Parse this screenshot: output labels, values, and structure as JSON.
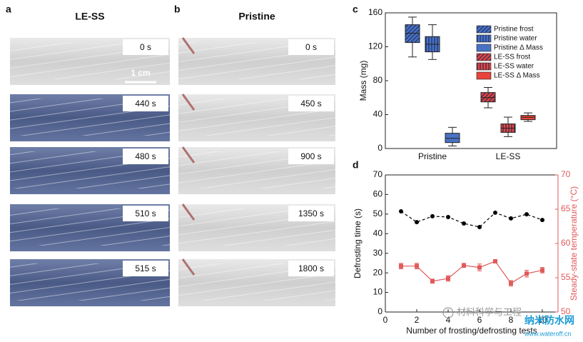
{
  "panels": [
    {
      "letter": "a",
      "title": "LE-SS",
      "times": [
        "0 s",
        "440 s",
        "480 s",
        "510 s",
        "515 s"
      ],
      "scale_bar": "1 cm"
    },
    {
      "letter": "b",
      "title": "Pristine",
      "times": [
        "0 s",
        "450 s",
        "900 s",
        "1350 s",
        "1800 s"
      ]
    }
  ],
  "chart_data": [
    {
      "type": "box",
      "letter": "c",
      "ylabel": "Mass (mg)",
      "ylim": [
        0,
        160
      ],
      "yticks": [
        0,
        40,
        80,
        120,
        160
      ],
      "categories": [
        "Pristine",
        "LE-SS"
      ],
      "series": [
        {
          "name": "Pristine frost",
          "color": "#4a72c4",
          "pattern": "hatch",
          "values": [
            [
              108,
              125,
              136,
              146,
              155
            ],
            null
          ]
        },
        {
          "name": "Pristine water",
          "color": "#4a72c4",
          "pattern": "vertical",
          "values": [
            [
              105,
              114,
              123,
              132,
              146
            ],
            null
          ]
        },
        {
          "name": "Pristine Δ Mass",
          "color": "#4a72c4",
          "pattern": "solid",
          "values": [
            [
              3,
              7,
              12,
              18,
              25
            ],
            null
          ]
        },
        {
          "name": "LE-SS frost",
          "color": "#e8433a",
          "pattern": "hatch",
          "values": [
            null,
            [
              48,
              55,
              60,
              66,
              72
            ]
          ]
        },
        {
          "name": "LE-SS water",
          "color": "#e8433a",
          "pattern": "vertical",
          "values": [
            null,
            [
              14,
              19,
              24,
              29,
              37
            ]
          ]
        },
        {
          "name": "LE-SS Δ Mass",
          "color": "#e8433a",
          "pattern": "solid",
          "values": [
            null,
            [
              32,
              34,
              37,
              39,
              42
            ]
          ]
        }
      ]
    },
    {
      "type": "line",
      "letter": "d",
      "xlabel": "Number of frosting/defrosting tests",
      "ylabel": "Defrosting time (s)",
      "y2label": "Steady-state temperature (°C)",
      "x": [
        1,
        2,
        3,
        4,
        5,
        6,
        7,
        8,
        9,
        10
      ],
      "xlim": [
        0,
        11
      ],
      "xticks": [
        0,
        2,
        4,
        6,
        8,
        10
      ],
      "ylim": [
        0,
        70
      ],
      "yticks": [
        0,
        10,
        20,
        30,
        40,
        50,
        60,
        70
      ],
      "y2lim": [
        50,
        70
      ],
      "y2ticks": [
        50,
        55,
        60,
        65,
        70
      ],
      "series": [
        {
          "color": "#000000",
          "dash": true,
          "values": [
            51.4,
            45.9,
            48.9,
            48.5,
            45.2,
            43.4,
            50.7,
            47.8,
            49.9,
            47.0
          ]
        },
        {
          "axis": "y2",
          "color": "#e05a5a",
          "values": [
            56.7,
            56.7,
            54.5,
            54.9,
            56.8,
            56.5,
            57.4,
            54.2,
            55.6,
            56.1
          ],
          "errors": [
            0.4,
            0.4,
            0.3,
            0.4,
            0.3,
            0.5,
            0.2,
            0.4,
            0.5,
            0.4
          ]
        }
      ]
    }
  ],
  "watermark": {
    "texts": [
      "材料科学与工程",
      "纳米防水网",
      "www.wateroff.cn"
    ]
  }
}
